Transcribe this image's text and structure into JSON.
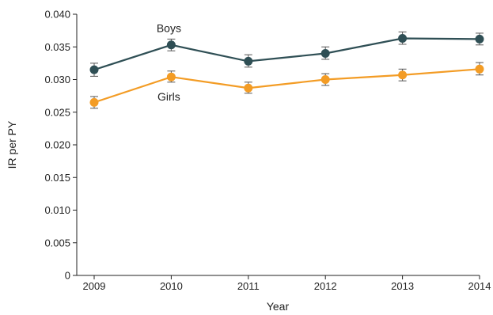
{
  "chart_data": {
    "type": "line",
    "xlabel": "Year",
    "ylabel": "IR per PY",
    "x": [
      2009,
      2010,
      2011,
      2012,
      2013,
      2014
    ],
    "ylim": [
      0,
      0.04
    ],
    "yticks": [
      "0",
      "0.005",
      "0.010",
      "0.015",
      "0.020",
      "0.025",
      "0.030",
      "0.035",
      "0.040"
    ],
    "xticks": [
      "2009",
      "2010",
      "2011",
      "2012",
      "2013",
      "2014"
    ],
    "grid": false,
    "legend": "inline labels",
    "error_bars": true,
    "series": [
      {
        "name": "Boys",
        "color": "#2f4f55",
        "values": [
          0.0315,
          0.0353,
          0.0328,
          0.034,
          0.0363,
          0.0362
        ],
        "lower": [
          0.0305,
          0.0344,
          0.0319,
          0.0331,
          0.0354,
          0.0353
        ],
        "upper": [
          0.0325,
          0.0362,
          0.0338,
          0.035,
          0.0373,
          0.0371
        ]
      },
      {
        "name": "Girls",
        "color": "#f39c25",
        "values": [
          0.0265,
          0.0304,
          0.0287,
          0.03,
          0.0307,
          0.0316
        ],
        "lower": [
          0.0256,
          0.0296,
          0.0279,
          0.0291,
          0.0298,
          0.0307
        ],
        "upper": [
          0.0274,
          0.0313,
          0.0296,
          0.0309,
          0.0316,
          0.0326
        ]
      }
    ]
  }
}
